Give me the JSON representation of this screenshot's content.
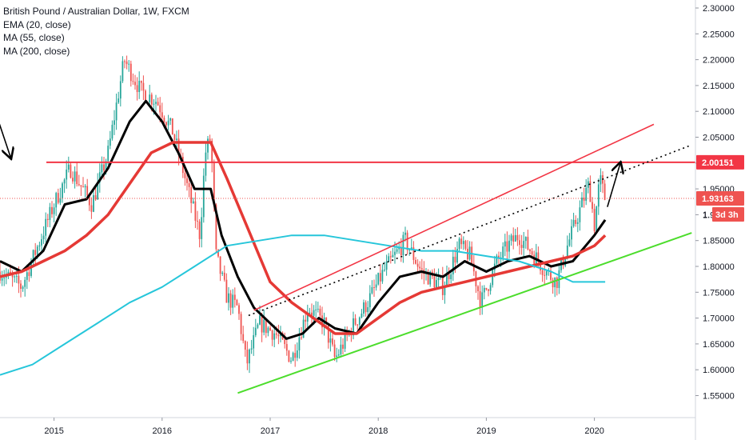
{
  "legend": {
    "title": "British Pound / Australian Dollar, 1W, FXCM",
    "ema": "EMA (20, close)",
    "ma55": "MA (55, close)",
    "ma200": "MA (200, close)"
  },
  "price_tags": {
    "level": "2.00151",
    "last": "1.93163",
    "countdown": "3d 3h"
  },
  "colors": {
    "up": "#26a69a",
    "down": "#ef5350",
    "ema": "#000000",
    "ma55": "#e53935",
    "ma200": "#26c6da",
    "hline": "#f23645",
    "upper_channel": "#f23645",
    "lower_channel": "#4cdd2c",
    "dotted_trend": "#000000"
  },
  "chart_data": {
    "type": "candlestick",
    "title": "British Pound / Australian Dollar, 1W, FXCM",
    "x_ticks": [
      "2015",
      "2016",
      "2017",
      "2018",
      "2019",
      "2020"
    ],
    "y_ticks": [
      "2.30000",
      "2.25000",
      "2.20000",
      "2.15000",
      "2.10000",
      "2.05000",
      "2.00000",
      "1.95000",
      "1.90000",
      "1.85000",
      "1.80000",
      "1.75000",
      "1.70000",
      "1.65000",
      "1.60000",
      "1.55000"
    ],
    "ylim": [
      1.5,
      2.31
    ],
    "xlim": [
      2014.5,
      2020.9
    ],
    "price_path": [
      [
        2014.5,
        1.79
      ],
      [
        2014.7,
        1.76
      ],
      [
        2014.85,
        1.84
      ],
      [
        2015.0,
        1.92
      ],
      [
        2015.15,
        1.99
      ],
      [
        2015.35,
        1.92
      ],
      [
        2015.5,
        2.02
      ],
      [
        2015.65,
        2.2
      ],
      [
        2015.8,
        2.14
      ],
      [
        2015.95,
        2.12
      ],
      [
        2016.1,
        2.06
      ],
      [
        2016.25,
        1.94
      ],
      [
        2016.35,
        1.86
      ],
      [
        2016.4,
        2.02
      ],
      [
        2016.45,
        2.05
      ],
      [
        2016.5,
        1.82
      ],
      [
        2016.6,
        1.74
      ],
      [
        2016.7,
        1.72
      ],
      [
        2016.78,
        1.61
      ],
      [
        2016.9,
        1.69
      ],
      [
        2017.05,
        1.67
      ],
      [
        2017.2,
        1.62
      ],
      [
        2017.35,
        1.72
      ],
      [
        2017.5,
        1.69
      ],
      [
        2017.6,
        1.62
      ],
      [
        2017.75,
        1.68
      ],
      [
        2017.9,
        1.73
      ],
      [
        2018.05,
        1.79
      ],
      [
        2018.25,
        1.85
      ],
      [
        2018.4,
        1.79
      ],
      [
        2018.6,
        1.76
      ],
      [
        2018.75,
        1.84
      ],
      [
        2018.85,
        1.82
      ],
      [
        2018.95,
        1.73
      ],
      [
        2019.1,
        1.81
      ],
      [
        2019.2,
        1.84
      ],
      [
        2019.3,
        1.86
      ],
      [
        2019.45,
        1.82
      ],
      [
        2019.55,
        1.79
      ],
      [
        2019.65,
        1.77
      ],
      [
        2019.75,
        1.84
      ],
      [
        2019.85,
        1.9
      ],
      [
        2019.95,
        1.96
      ],
      [
        2020.0,
        1.88
      ],
      [
        2020.05,
        1.97
      ],
      [
        2020.1,
        1.93
      ]
    ],
    "series": [
      {
        "name": "EMA (20, close)",
        "points": [
          [
            2014.5,
            1.81
          ],
          [
            2014.7,
            1.79
          ],
          [
            2014.9,
            1.83
          ],
          [
            2015.1,
            1.92
          ],
          [
            2015.3,
            1.93
          ],
          [
            2015.5,
            1.99
          ],
          [
            2015.7,
            2.08
          ],
          [
            2015.85,
            2.12
          ],
          [
            2016.0,
            2.08
          ],
          [
            2016.15,
            2.02
          ],
          [
            2016.3,
            1.95
          ],
          [
            2016.45,
            1.95
          ],
          [
            2016.55,
            1.86
          ],
          [
            2016.7,
            1.78
          ],
          [
            2016.85,
            1.72
          ],
          [
            2017.0,
            1.69
          ],
          [
            2017.15,
            1.66
          ],
          [
            2017.3,
            1.67
          ],
          [
            2017.45,
            1.7
          ],
          [
            2017.6,
            1.68
          ],
          [
            2017.8,
            1.67
          ],
          [
            2018.0,
            1.73
          ],
          [
            2018.2,
            1.78
          ],
          [
            2018.4,
            1.79
          ],
          [
            2018.6,
            1.78
          ],
          [
            2018.8,
            1.81
          ],
          [
            2019.0,
            1.79
          ],
          [
            2019.2,
            1.81
          ],
          [
            2019.4,
            1.82
          ],
          [
            2019.6,
            1.8
          ],
          [
            2019.8,
            1.81
          ],
          [
            2020.0,
            1.86
          ],
          [
            2020.1,
            1.89
          ]
        ]
      },
      {
        "name": "MA (55, close)",
        "points": [
          [
            2014.5,
            1.78
          ],
          [
            2014.7,
            1.79
          ],
          [
            2014.9,
            1.81
          ],
          [
            2015.1,
            1.83
          ],
          [
            2015.3,
            1.86
          ],
          [
            2015.5,
            1.9
          ],
          [
            2015.7,
            1.96
          ],
          [
            2015.9,
            2.02
          ],
          [
            2016.1,
            2.04
          ],
          [
            2016.3,
            2.04
          ],
          [
            2016.45,
            2.04
          ],
          [
            2016.6,
            1.97
          ],
          [
            2016.8,
            1.87
          ],
          [
            2017.0,
            1.77
          ],
          [
            2017.2,
            1.73
          ],
          [
            2017.4,
            1.7
          ],
          [
            2017.6,
            1.67
          ],
          [
            2017.8,
            1.67
          ],
          [
            2018.0,
            1.7
          ],
          [
            2018.2,
            1.73
          ],
          [
            2018.4,
            1.75
          ],
          [
            2018.6,
            1.76
          ],
          [
            2018.8,
            1.77
          ],
          [
            2019.0,
            1.78
          ],
          [
            2019.2,
            1.79
          ],
          [
            2019.4,
            1.8
          ],
          [
            2019.6,
            1.81
          ],
          [
            2019.8,
            1.82
          ],
          [
            2020.0,
            1.84
          ],
          [
            2020.1,
            1.86
          ]
        ]
      },
      {
        "name": "MA (200, close)",
        "points": [
          [
            2014.5,
            1.59
          ],
          [
            2014.8,
            1.61
          ],
          [
            2015.1,
            1.65
          ],
          [
            2015.4,
            1.69
          ],
          [
            2015.7,
            1.73
          ],
          [
            2016.0,
            1.76
          ],
          [
            2016.3,
            1.8
          ],
          [
            2016.6,
            1.84
          ],
          [
            2016.9,
            1.85
          ],
          [
            2017.2,
            1.86
          ],
          [
            2017.5,
            1.86
          ],
          [
            2017.8,
            1.85
          ],
          [
            2018.1,
            1.84
          ],
          [
            2018.4,
            1.83
          ],
          [
            2018.7,
            1.83
          ],
          [
            2019.0,
            1.82
          ],
          [
            2019.3,
            1.81
          ],
          [
            2019.6,
            1.79
          ],
          [
            2019.8,
            1.77
          ],
          [
            2020.0,
            1.77
          ],
          [
            2020.1,
            1.77
          ]
        ]
      }
    ],
    "lines": [
      {
        "name": "horizontal-level",
        "value": 2.00151
      },
      {
        "name": "upper-channel",
        "from": [
          2016.85,
          1.715
        ],
        "to": [
          2020.55,
          2.075
        ]
      },
      {
        "name": "lower-channel",
        "from": [
          2016.7,
          1.555
        ],
        "to": [
          2020.9,
          1.865
        ]
      },
      {
        "name": "dotted-trendline",
        "from": [
          2016.8,
          1.705
        ],
        "to": [
          2020.9,
          2.035
        ]
      },
      {
        "name": "projection-arrow",
        "from": [
          2020.12,
          1.915
        ],
        "to": [
          2020.24,
          2.0
        ]
      },
      {
        "name": "pointer-arrow",
        "from": [
          2014.4,
          2.135
        ],
        "to": [
          2014.6,
          2.01
        ]
      }
    ],
    "last_price": 1.93163,
    "countdown": "3d 3h"
  }
}
